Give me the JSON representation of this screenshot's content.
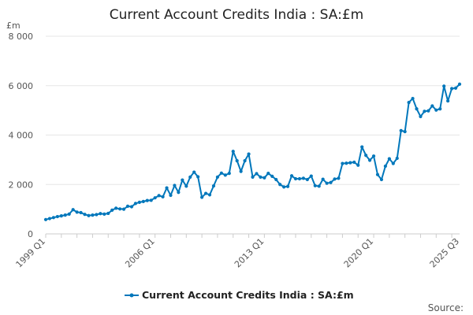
{
  "chart_data": {
    "type": "line",
    "title": "Current Account Credits India : SA:£m",
    "unit_label": "£m",
    "source_label": "Source:",
    "ylim": [
      0,
      8000
    ],
    "y_ticks": [
      {
        "value": 0,
        "label": "0"
      },
      {
        "value": 2000,
        "label": "2 000"
      },
      {
        "value": 4000,
        "label": "4 000"
      },
      {
        "value": 6000,
        "label": "6 000"
      },
      {
        "value": 8000,
        "label": "8 000"
      }
    ],
    "x_tick_labels": [
      {
        "index": 0,
        "label": "1999 Q1"
      },
      {
        "index": 28,
        "label": "2006 Q1"
      },
      {
        "index": 56,
        "label": "2013 Q1"
      },
      {
        "index": 84,
        "label": "2020 Q1"
      },
      {
        "index": 106,
        "label": "2025 Q3"
      }
    ],
    "grid": true,
    "legend_position": "bottom",
    "series": [
      {
        "name": "Current Account Credits India : SA:£m",
        "color": "#0077bb",
        "start_period": "1999 Q1",
        "end_period": "2025 Q3",
        "values": [
          580,
          620,
          660,
          700,
          730,
          760,
          800,
          980,
          880,
          860,
          790,
          740,
          760,
          780,
          820,
          800,
          830,
          960,
          1040,
          1010,
          1000,
          1120,
          1100,
          1230,
          1280,
          1310,
          1350,
          1360,
          1460,
          1550,
          1500,
          1860,
          1560,
          1960,
          1680,
          2180,
          1930,
          2300,
          2500,
          2310,
          1480,
          1640,
          1580,
          1940,
          2300,
          2460,
          2380,
          2450,
          3340,
          2960,
          2530,
          2960,
          3230,
          2300,
          2440,
          2300,
          2270,
          2450,
          2330,
          2200,
          2000,
          1900,
          1920,
          2350,
          2230,
          2230,
          2250,
          2200,
          2340,
          1950,
          1930,
          2210,
          2050,
          2080,
          2220,
          2250,
          2850,
          2860,
          2880,
          2900,
          2780,
          3520,
          3180,
          2980,
          3150,
          2400,
          2200,
          2740,
          3040,
          2850,
          3060,
          4180,
          4140,
          5320,
          5480,
          5060,
          4750,
          4960,
          4980,
          5180,
          5010,
          5060,
          5980,
          5380,
          5880,
          5900,
          6060
        ]
      }
    ]
  }
}
